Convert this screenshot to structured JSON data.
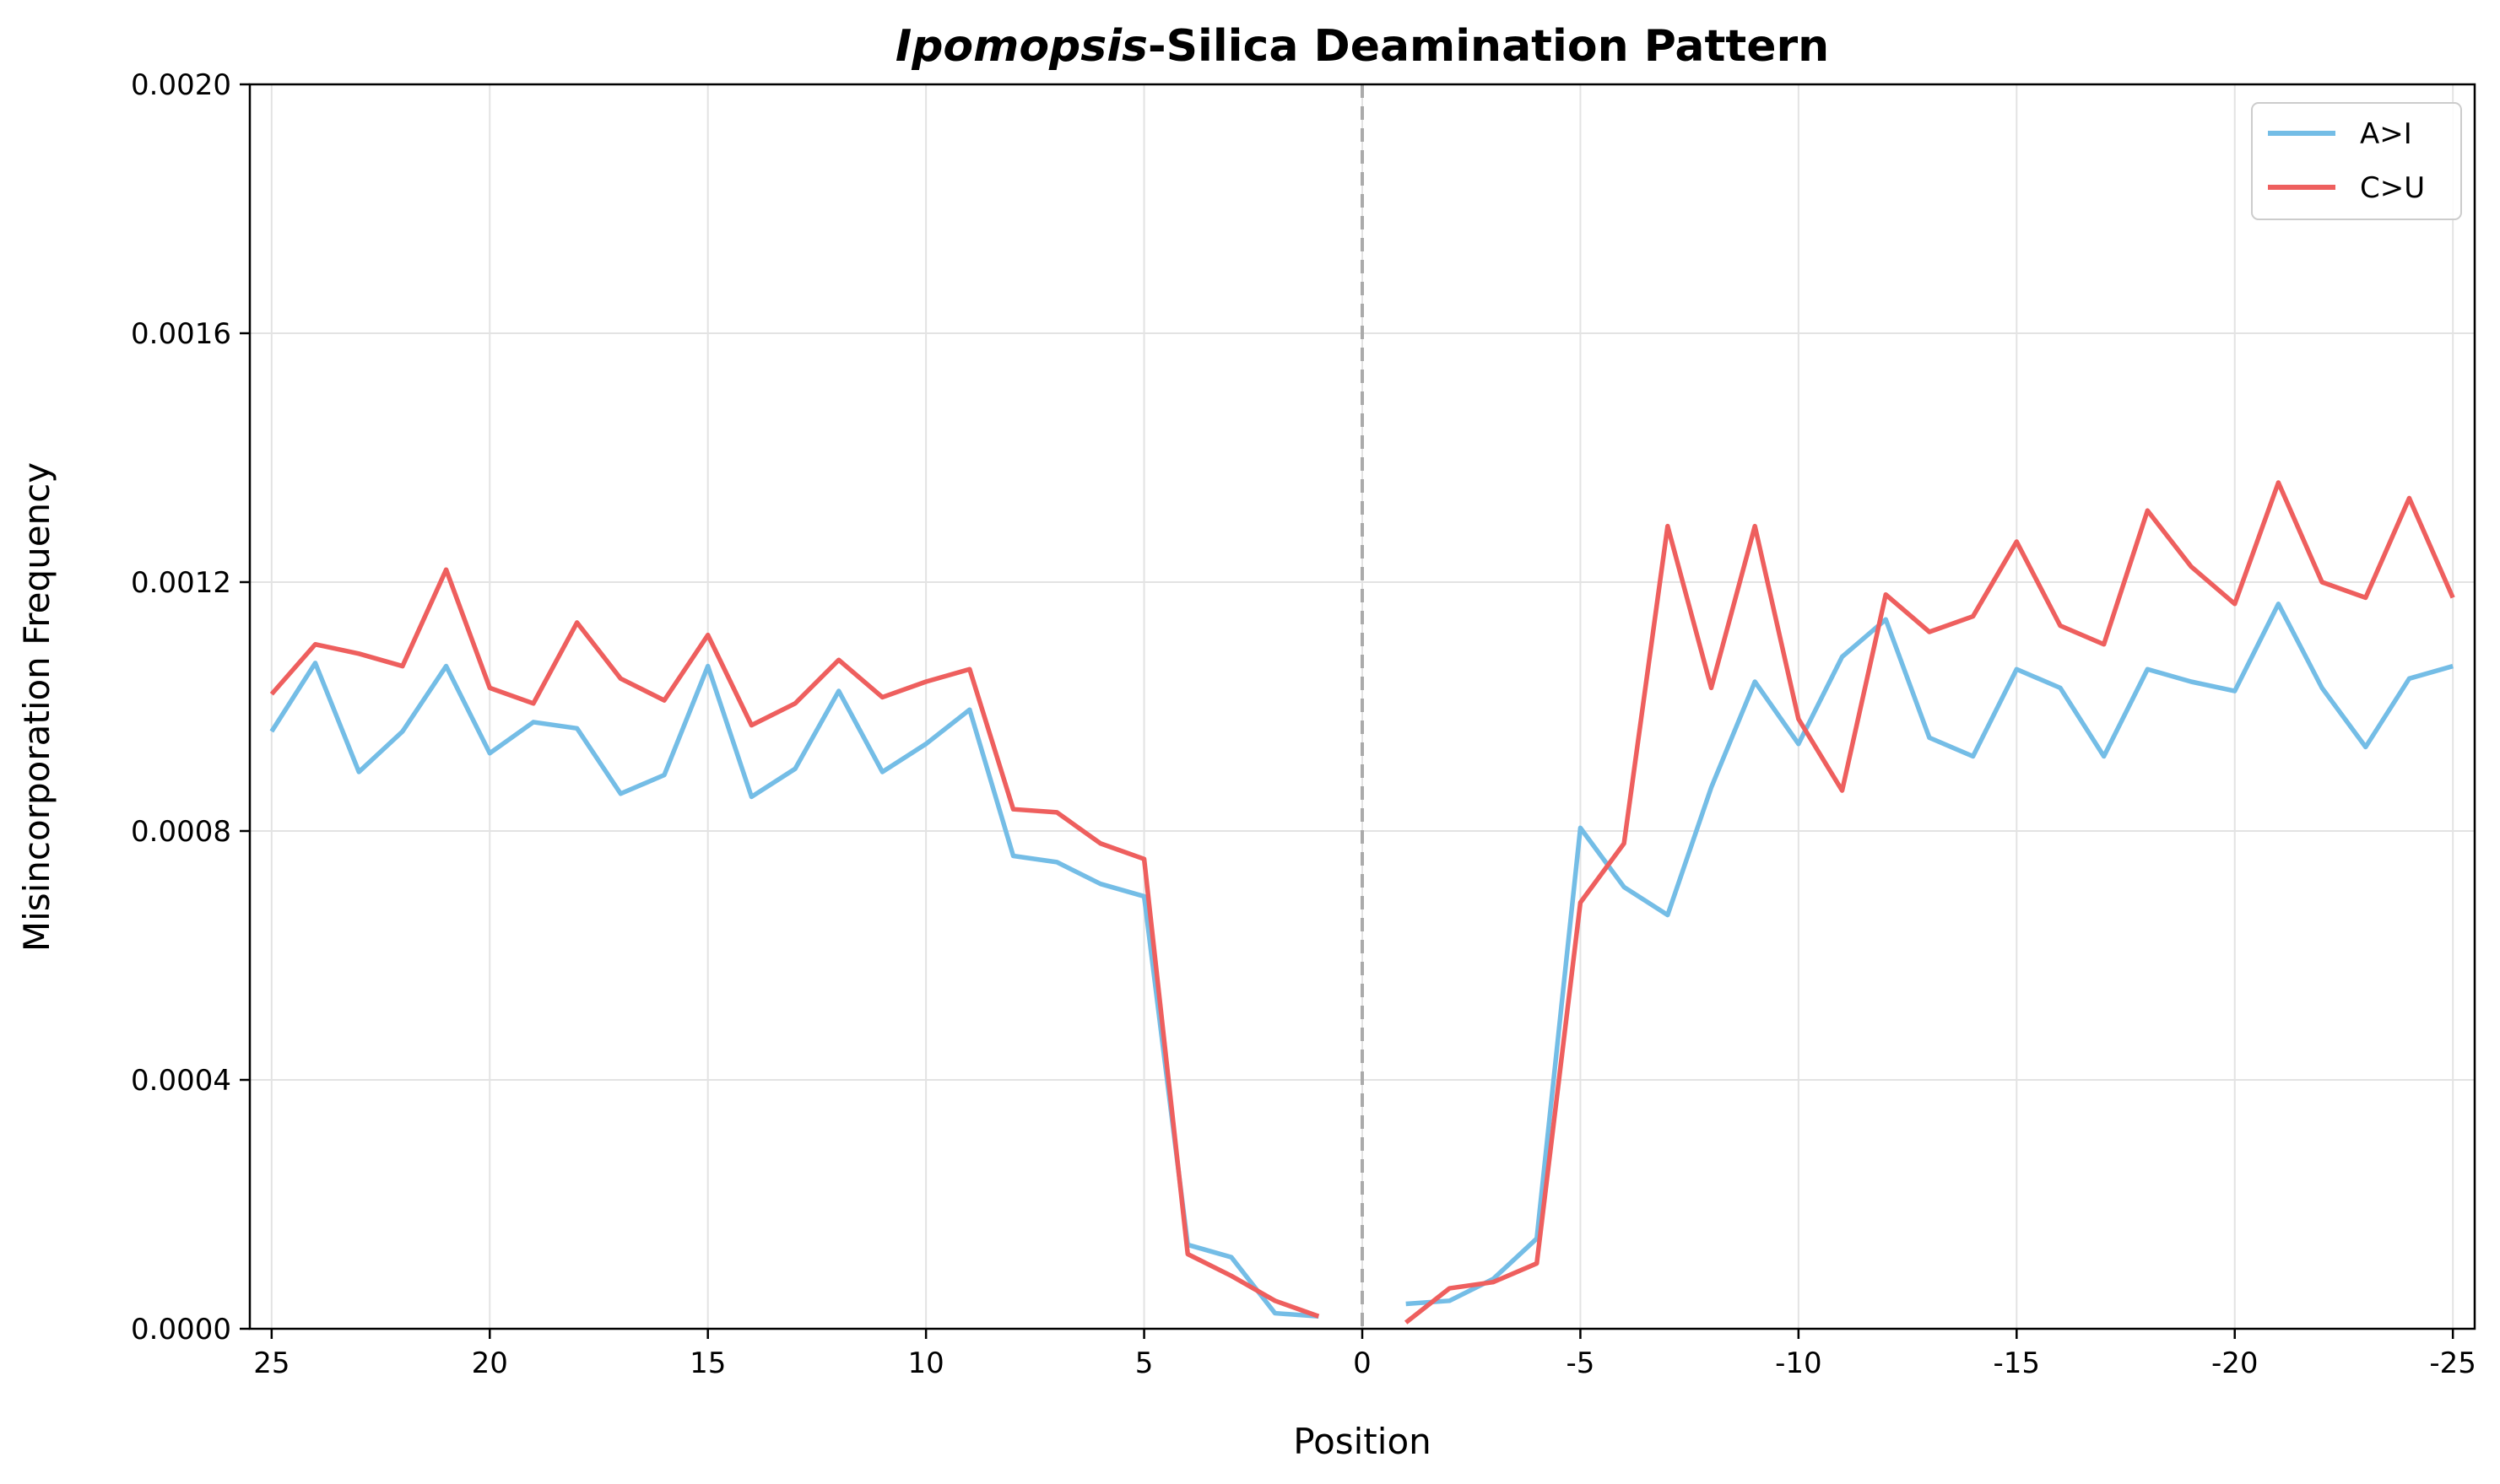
{
  "chart_data": {
    "type": "line",
    "title_italic": "Ipomopsis",
    "title_rest": "-Silica Deamination Pattern",
    "xlabel": "Position",
    "ylabel": "Misincorporation Frequency",
    "xlim": [
      25.5,
      -25.5
    ],
    "ylim": [
      0,
      0.002
    ],
    "x_ticks": [
      25,
      20,
      15,
      10,
      5,
      0,
      -5,
      -10,
      -15,
      -20,
      -25
    ],
    "y_ticks": [
      0.0,
      0.0004,
      0.0008,
      0.0012,
      0.0016,
      0.002
    ],
    "x_tick_labels": [
      "25",
      "20",
      "15",
      "10",
      "5",
      "0",
      "-5",
      "-10",
      "-15",
      "-20",
      "-25"
    ],
    "y_tick_labels": [
      "0.0000",
      "0.0004",
      "0.0008",
      "0.0012",
      "0.0016",
      "0.0020"
    ],
    "grid": true,
    "center_line": 0,
    "legend_position": "top-right",
    "series": [
      {
        "name": "A>I",
        "color": "#74bde6",
        "segments": [
          {
            "x": [
              25,
              24,
              23,
              22,
              21,
              20,
              19,
              18,
              17,
              16,
              15,
              14,
              13,
              12,
              11,
              10,
              9,
              8,
              7,
              6,
              5,
              4,
              3,
              2,
              1
            ],
            "y": [
              0.00096,
              0.00107,
              0.000895,
              0.00096,
              0.001065,
              0.000925,
              0.000975,
              0.000965,
              0.00086,
              0.00089,
              0.001065,
              0.000855,
              0.0009,
              0.001025,
              0.000895,
              0.00094,
              0.000995,
              0.00076,
              0.00075,
              0.000715,
              0.000695,
              0.000135,
              0.000115,
              2.5e-05,
              2e-05
            ]
          },
          {
            "x": [
              -1,
              -2,
              -3,
              -4,
              -5,
              -6,
              -7,
              -8,
              -9,
              -10,
              -11,
              -12,
              -13,
              -14,
              -15,
              -16,
              -17,
              -18,
              -19,
              -20,
              -21,
              -22,
              -23,
              -24,
              -25
            ],
            "y": [
              4e-05,
              4.5e-05,
              8e-05,
              0.000145,
              0.000805,
              0.00071,
              0.000665,
              0.00087,
              0.00104,
              0.00094,
              0.00108,
              0.00114,
              0.00095,
              0.00092,
              0.00106,
              0.00103,
              0.00092,
              0.00106,
              0.00104,
              0.001025,
              0.001165,
              0.00103,
              0.000935,
              0.001045,
              0.001065
            ]
          }
        ]
      },
      {
        "name": "C>U",
        "color": "#ee5f5e",
        "segments": [
          {
            "x": [
              25,
              24,
              23,
              22,
              21,
              20,
              19,
              18,
              17,
              16,
              15,
              14,
              13,
              12,
              11,
              10,
              9,
              8,
              7,
              6,
              5,
              4,
              3,
              2,
              1
            ],
            "y": [
              0.00102,
              0.0011,
              0.001085,
              0.001065,
              0.00122,
              0.00103,
              0.001005,
              0.001135,
              0.001045,
              0.00101,
              0.001115,
              0.00097,
              0.001005,
              0.001075,
              0.001015,
              0.00104,
              0.00106,
              0.000835,
              0.00083,
              0.00078,
              0.000755,
              0.00012,
              8.5e-05,
              4.5e-05,
              2e-05
            ]
          },
          {
            "x": [
              -1,
              -2,
              -3,
              -4,
              -5,
              -6,
              -7,
              -8,
              -9,
              -10,
              -11,
              -12,
              -13,
              -14,
              -15,
              -16,
              -17,
              -18,
              -19,
              -20,
              -21,
              -22,
              -23,
              -24,
              -25
            ],
            "y": [
              1e-05,
              6.5e-05,
              7.5e-05,
              0.000105,
              0.000685,
              0.00078,
              0.00129,
              0.00103,
              0.00129,
              0.00098,
              0.000865,
              0.00118,
              0.00112,
              0.001145,
              0.001265,
              0.00113,
              0.0011,
              0.001315,
              0.001225,
              0.001165,
              0.00136,
              0.0012,
              0.001175,
              0.001335,
              0.001175
            ]
          }
        ]
      }
    ]
  }
}
